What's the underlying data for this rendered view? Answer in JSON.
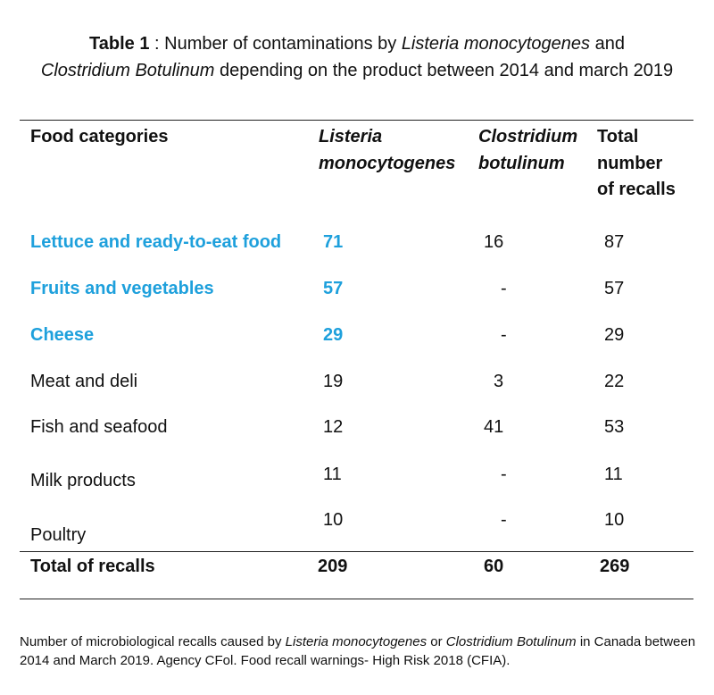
{
  "title": {
    "label": "Table 1",
    "sep": " : ",
    "p1": "Number of contaminations by ",
    "i1": "Listeria monocytogenes",
    "p2": " and ",
    "i2": "Clostridium Botulinum",
    "p3": " depending on the product between 2014 and march 2019"
  },
  "headers": {
    "category": "Food categories",
    "listeria_l1": "Listeria",
    "listeria_l2": "monocytogenes",
    "clostridium_l1": "Clostridium",
    "clostridium_l2": "botulinum",
    "total_l1": "Total",
    "total_l2": "number",
    "total_l3": "of recalls"
  },
  "rows": [
    {
      "category": "Lettuce and ready-to-eat food",
      "listeria": "71",
      "clostridium": "16",
      "total": "87"
    },
    {
      "category": "Fruits and vegetables",
      "listeria": "57",
      "clostridium": "-",
      "total": "57"
    },
    {
      "category": "Cheese",
      "listeria": "29",
      "clostridium": "-",
      "total": "29"
    },
    {
      "category": "Meat and deli",
      "listeria": "19",
      "clostridium": "3",
      "total": "22"
    },
    {
      "category": "Fish and seafood",
      "listeria": "12",
      "clostridium": "41",
      "total": "53"
    },
    {
      "category": "Milk products",
      "listeria": "11",
      "clostridium": "-",
      "total": "11"
    },
    {
      "category": "Poultry",
      "listeria": "10",
      "clostridium": "-",
      "total": "10"
    }
  ],
  "totals": {
    "label": "Total of recalls",
    "listeria": "209",
    "clostridium": "60",
    "total": "269"
  },
  "footnote": {
    "p1": "Number of microbiological recalls caused by ",
    "i1": "Listeria monocytogenes",
    "p2": " or ",
    "i2": "Clostridium Botulinum",
    "p3": " in Canada between 2014 and March 2019. Agency CFol. Food recall warnings- High Risk 2018 (CFIA)."
  },
  "colors": {
    "highlight": "#1ea0dc",
    "text": "#111111"
  }
}
